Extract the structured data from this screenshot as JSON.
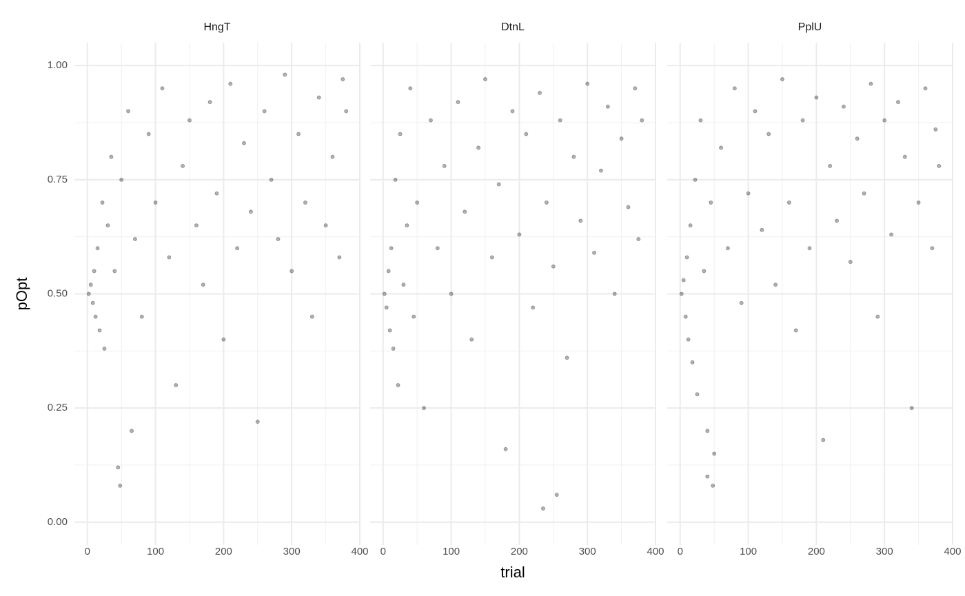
{
  "chart_data": [
    {
      "type": "scatter",
      "title": "HngT",
      "ylabel": "pOpt",
      "color": "#000000",
      "alpha": 0.3,
      "x": [
        2,
        5,
        8,
        10,
        12,
        15,
        18,
        22,
        25,
        30,
        35,
        40,
        45,
        50,
        60,
        70,
        80,
        90,
        100,
        110,
        120,
        130,
        140,
        150,
        160,
        170,
        180,
        190,
        200,
        210,
        220,
        230,
        240,
        250,
        260,
        270,
        280,
        290,
        300,
        310,
        320,
        330,
        340,
        350,
        360,
        370,
        375,
        380,
        48,
        65
      ],
      "y": [
        0.5,
        0.52,
        0.48,
        0.55,
        0.45,
        0.6,
        0.42,
        0.7,
        0.38,
        0.65,
        0.8,
        0.55,
        0.12,
        0.75,
        0.9,
        0.62,
        0.45,
        0.85,
        0.7,
        0.95,
        0.58,
        0.3,
        0.78,
        0.88,
        0.65,
        0.52,
        0.92,
        0.72,
        0.4,
        0.96,
        0.6,
        0.83,
        0.68,
        0.22,
        0.9,
        0.75,
        0.62,
        0.98,
        0.55,
        0.85,
        0.7,
        0.45,
        0.93,
        0.65,
        0.8,
        0.58,
        0.97,
        0.9,
        0.08,
        0.2
      ],
      "xlim": [
        -19,
        400
      ],
      "ylim": [
        -0.05,
        1.05
      ],
      "xticks": [
        0,
        100,
        200,
        300,
        400
      ],
      "minor_xticks": [
        50,
        150,
        250,
        350
      ],
      "yticks": [
        {
          "value": 0,
          "label": "0.00"
        },
        {
          "value": 0.25,
          "label": "0.25"
        },
        {
          "value": 0.5,
          "label": "0.50"
        },
        {
          "value": 0.75,
          "label": "0.75"
        },
        {
          "value": 1,
          "label": "1.00"
        }
      ],
      "minor_yticks": [
        0.125,
        0.375,
        0.625,
        0.875
      ],
      "grid": true
    },
    {
      "type": "scatter",
      "title": "DtnL",
      "xlabel": "trial",
      "color": "#000000",
      "alpha": 0.3,
      "x": [
        2,
        5,
        8,
        10,
        12,
        15,
        18,
        22,
        25,
        30,
        35,
        40,
        45,
        50,
        60,
        70,
        80,
        90,
        100,
        110,
        120,
        130,
        140,
        150,
        160,
        170,
        180,
        190,
        200,
        210,
        220,
        230,
        240,
        250,
        260,
        270,
        280,
        290,
        300,
        310,
        320,
        330,
        340,
        350,
        360,
        370,
        375,
        380,
        235,
        255
      ],
      "y": [
        0.5,
        0.47,
        0.55,
        0.42,
        0.6,
        0.38,
        0.75,
        0.3,
        0.85,
        0.52,
        0.65,
        0.95,
        0.45,
        0.7,
        0.25,
        0.88,
        0.6,
        0.78,
        0.5,
        0.92,
        0.68,
        0.4,
        0.82,
        0.97,
        0.58,
        0.74,
        0.16,
        0.9,
        0.63,
        0.85,
        0.47,
        0.94,
        0.7,
        0.56,
        0.88,
        0.36,
        0.8,
        0.66,
        0.96,
        0.59,
        0.77,
        0.91,
        0.5,
        0.84,
        0.69,
        0.95,
        0.62,
        0.88,
        0.03,
        0.06
      ],
      "xlim": [
        -19,
        400
      ],
      "ylim": [
        -0.05,
        1.05
      ],
      "xticks": [
        0,
        100,
        200,
        300,
        400
      ],
      "minor_xticks": [
        50,
        150,
        250,
        350
      ],
      "yticks": [
        0,
        0.25,
        0.5,
        0.75,
        1
      ],
      "minor_yticks": [
        0.125,
        0.375,
        0.625,
        0.875
      ],
      "grid": true
    },
    {
      "type": "scatter",
      "title": "PplU",
      "color": "#000000",
      "alpha": 0.3,
      "x": [
        2,
        5,
        8,
        10,
        12,
        15,
        18,
        22,
        25,
        30,
        35,
        40,
        45,
        50,
        60,
        70,
        80,
        90,
        100,
        110,
        120,
        130,
        140,
        150,
        160,
        170,
        180,
        190,
        200,
        210,
        220,
        230,
        240,
        250,
        260,
        270,
        280,
        290,
        300,
        310,
        320,
        330,
        340,
        350,
        360,
        370,
        375,
        380,
        40,
        48
      ],
      "y": [
        0.5,
        0.53,
        0.45,
        0.58,
        0.4,
        0.65,
        0.35,
        0.75,
        0.28,
        0.88,
        0.55,
        0.2,
        0.7,
        0.15,
        0.82,
        0.6,
        0.95,
        0.48,
        0.72,
        0.9,
        0.64,
        0.85,
        0.52,
        0.97,
        0.7,
        0.42,
        0.88,
        0.6,
        0.93,
        0.18,
        0.78,
        0.66,
        0.91,
        0.57,
        0.84,
        0.72,
        0.96,
        0.45,
        0.88,
        0.63,
        0.92,
        0.8,
        0.25,
        0.7,
        0.95,
        0.6,
        0.86,
        0.78,
        0.1,
        0.08
      ],
      "xlim": [
        -19,
        400
      ],
      "ylim": [
        -0.05,
        1.05
      ],
      "xticks": [
        0,
        100,
        200,
        300,
        400
      ],
      "minor_xticks": [
        50,
        150,
        250,
        350
      ],
      "yticks": [
        0,
        0.25,
        0.5,
        0.75,
        1
      ],
      "minor_yticks": [
        0.125,
        0.375,
        0.625,
        0.875
      ],
      "grid": true
    }
  ]
}
